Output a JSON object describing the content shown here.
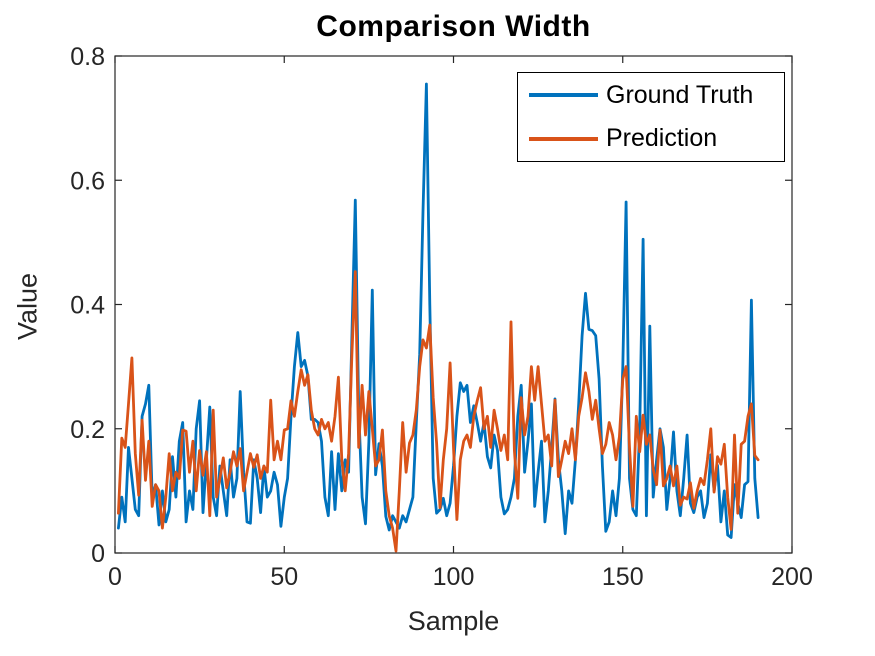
{
  "figure": {
    "background": "#ffffff",
    "axis_color": "#262626"
  },
  "chart_data": {
    "type": "line",
    "title": "Comparison Width",
    "xlabel": "Sample",
    "ylabel": "Value",
    "xlim": [
      0,
      200
    ],
    "ylim": [
      0,
      0.8
    ],
    "xticks": [
      0,
      50,
      100,
      150,
      200
    ],
    "xtick_labels": [
      "0",
      "50",
      "100",
      "150",
      "200"
    ],
    "yticks": [
      0,
      0.2,
      0.4,
      0.6,
      0.8
    ],
    "ytick_labels": [
      "0",
      "0.2",
      "0.4",
      "0.6",
      "0.8"
    ],
    "grid": false,
    "legend_position": "top-right-inside",
    "x": {
      "start": 1,
      "step": 1,
      "count": 190
    },
    "series": [
      {
        "name": "Ground Truth",
        "color": "#0072BD",
        "values": [
          0.04,
          0.09,
          0.05,
          0.17,
          0.12,
          0.07,
          0.06,
          0.22,
          0.24,
          0.27,
          0.09,
          0.11,
          0.045,
          0.1,
          0.05,
          0.07,
          0.155,
          0.09,
          0.18,
          0.21,
          0.05,
          0.1,
          0.07,
          0.2,
          0.245,
          0.065,
          0.15,
          0.235,
          0.09,
          0.06,
          0.14,
          0.1,
          0.06,
          0.15,
          0.09,
          0.12,
          0.26,
          0.13,
          0.05,
          0.048,
          0.15,
          0.12,
          0.065,
          0.14,
          0.09,
          0.1,
          0.13,
          0.11,
          0.043,
          0.09,
          0.12,
          0.22,
          0.3,
          0.355,
          0.3,
          0.31,
          0.285,
          0.215,
          0.215,
          0.21,
          0.18,
          0.09,
          0.06,
          0.163,
          0.07,
          0.16,
          0.1,
          0.15,
          0.13,
          0.35,
          0.568,
          0.23,
          0.09,
          0.047,
          0.18,
          0.423,
          0.126,
          0.176,
          0.14,
          0.059,
          0.037,
          0.06,
          0.05,
          0.04,
          0.06,
          0.05,
          0.07,
          0.09,
          0.21,
          0.32,
          0.55,
          0.755,
          0.4,
          0.12,
          0.064,
          0.07,
          0.088,
          0.06,
          0.08,
          0.14,
          0.22,
          0.274,
          0.26,
          0.27,
          0.21,
          0.237,
          0.21,
          0.18,
          0.21,
          0.155,
          0.137,
          0.19,
          0.165,
          0.09,
          0.063,
          0.07,
          0.09,
          0.12,
          0.22,
          0.27,
          0.13,
          0.18,
          0.24,
          0.075,
          0.13,
          0.18,
          0.05,
          0.1,
          0.17,
          0.248,
          0.15,
          0.1,
          0.031,
          0.1,
          0.08,
          0.15,
          0.24,
          0.35,
          0.418,
          0.36,
          0.358,
          0.35,
          0.28,
          0.14,
          0.035,
          0.05,
          0.1,
          0.06,
          0.12,
          0.3,
          0.565,
          0.12,
          0.07,
          0.06,
          0.2,
          0.505,
          0.06,
          0.365,
          0.09,
          0.15,
          0.2,
          0.17,
          0.07,
          0.12,
          0.195,
          0.1,
          0.06,
          0.12,
          0.19,
          0.08,
          0.065,
          0.09,
          0.1,
          0.057,
          0.08,
          0.158,
          0.1,
          0.141,
          0.05,
          0.1,
          0.029,
          0.025,
          0.11,
          0.08,
          0.057,
          0.11,
          0.115,
          0.407,
          0.12,
          0.057
        ]
      },
      {
        "name": "Prediction",
        "color": "#D95319",
        "values": [
          0.064,
          0.185,
          0.17,
          0.24,
          0.314,
          0.16,
          0.093,
          0.214,
          0.117,
          0.18,
          0.075,
          0.11,
          0.1,
          0.04,
          0.09,
          0.16,
          0.1,
          0.13,
          0.12,
          0.198,
          0.196,
          0.13,
          0.18,
          0.1,
          0.165,
          0.125,
          0.163,
          0.06,
          0.23,
          0.09,
          0.12,
          0.153,
          0.105,
          0.13,
          0.163,
          0.14,
          0.168,
          0.1,
          0.13,
          0.16,
          0.138,
          0.158,
          0.12,
          0.14,
          0.13,
          0.246,
          0.15,
          0.18,
          0.15,
          0.198,
          0.2,
          0.245,
          0.22,
          0.26,
          0.295,
          0.27,
          0.287,
          0.23,
          0.2,
          0.19,
          0.215,
          0.2,
          0.21,
          0.18,
          0.22,
          0.283,
          0.15,
          0.1,
          0.16,
          0.32,
          0.453,
          0.17,
          0.27,
          0.19,
          0.26,
          0.2,
          0.14,
          0.15,
          0.198,
          0.1,
          0.06,
          0.04,
          0.003,
          0.1,
          0.21,
          0.13,
          0.177,
          0.19,
          0.23,
          0.3,
          0.343,
          0.33,
          0.367,
          0.25,
          0.177,
          0.073,
          0.15,
          0.2,
          0.306,
          0.17,
          0.054,
          0.15,
          0.18,
          0.19,
          0.17,
          0.22,
          0.245,
          0.266,
          0.2,
          0.22,
          0.17,
          0.23,
          0.2,
          0.165,
          0.19,
          0.15,
          0.372,
          0.165,
          0.088,
          0.25,
          0.19,
          0.22,
          0.3,
          0.246,
          0.3,
          0.24,
          0.18,
          0.19,
          0.14,
          0.246,
          0.123,
          0.15,
          0.18,
          0.16,
          0.2,
          0.15,
          0.22,
          0.25,
          0.29,
          0.26,
          0.215,
          0.246,
          0.2,
          0.16,
          0.175,
          0.21,
          0.19,
          0.15,
          0.187,
          0.28,
          0.3,
          0.17,
          0.075,
          0.22,
          0.163,
          0.222,
          0.175,
          0.19,
          0.135,
          0.11,
          0.198,
          0.108,
          0.12,
          0.14,
          0.108,
          0.14,
          0.077,
          0.09,
          0.087,
          0.113,
          0.072,
          0.1,
          0.12,
          0.11,
          0.15,
          0.2,
          0.098,
          0.155,
          0.143,
          0.175,
          0.09,
          0.038,
          0.19,
          0.064,
          0.175,
          0.18,
          0.22,
          0.24,
          0.157,
          0.15
        ]
      }
    ]
  },
  "legend": {
    "entries": [
      {
        "label": "Ground Truth"
      },
      {
        "label": "Prediction"
      }
    ]
  }
}
